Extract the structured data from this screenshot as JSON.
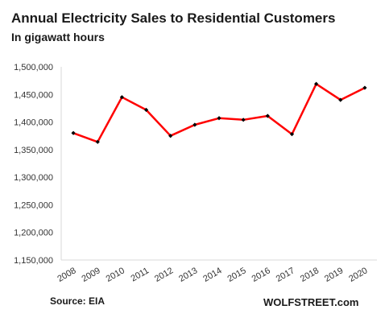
{
  "chart_data": {
    "type": "line",
    "title": "Annual Electricity Sales to Residential Customers",
    "subtitle": "In gigawatt hours",
    "x": [
      "2008",
      "2009",
      "2010",
      "2011",
      "2012",
      "2013",
      "2014",
      "2015",
      "2016",
      "2017",
      "2018",
      "2019",
      "2020"
    ],
    "series": [
      {
        "name": "",
        "values": [
          1380000,
          1364000,
          1445000,
          1422000,
          1375000,
          1395000,
          1407000,
          1404000,
          1411000,
          1378000,
          1469000,
          1440000,
          1462000
        ],
        "color": "#ff0000"
      }
    ],
    "ylim": [
      1150000,
      1500000
    ],
    "yticks": [
      1150000,
      1200000,
      1250000,
      1300000,
      1350000,
      1400000,
      1450000,
      1500000
    ],
    "ytick_labels": [
      "1,150,000",
      "1,200,000",
      "1,250,000",
      "1,300,000",
      "1,350,000",
      "1,400,000",
      "1,450,000",
      "1,500,000"
    ],
    "grid": false,
    "marker_color": "#000000",
    "source": "Source: EIA",
    "brand": "WOLFSTREET.com"
  }
}
